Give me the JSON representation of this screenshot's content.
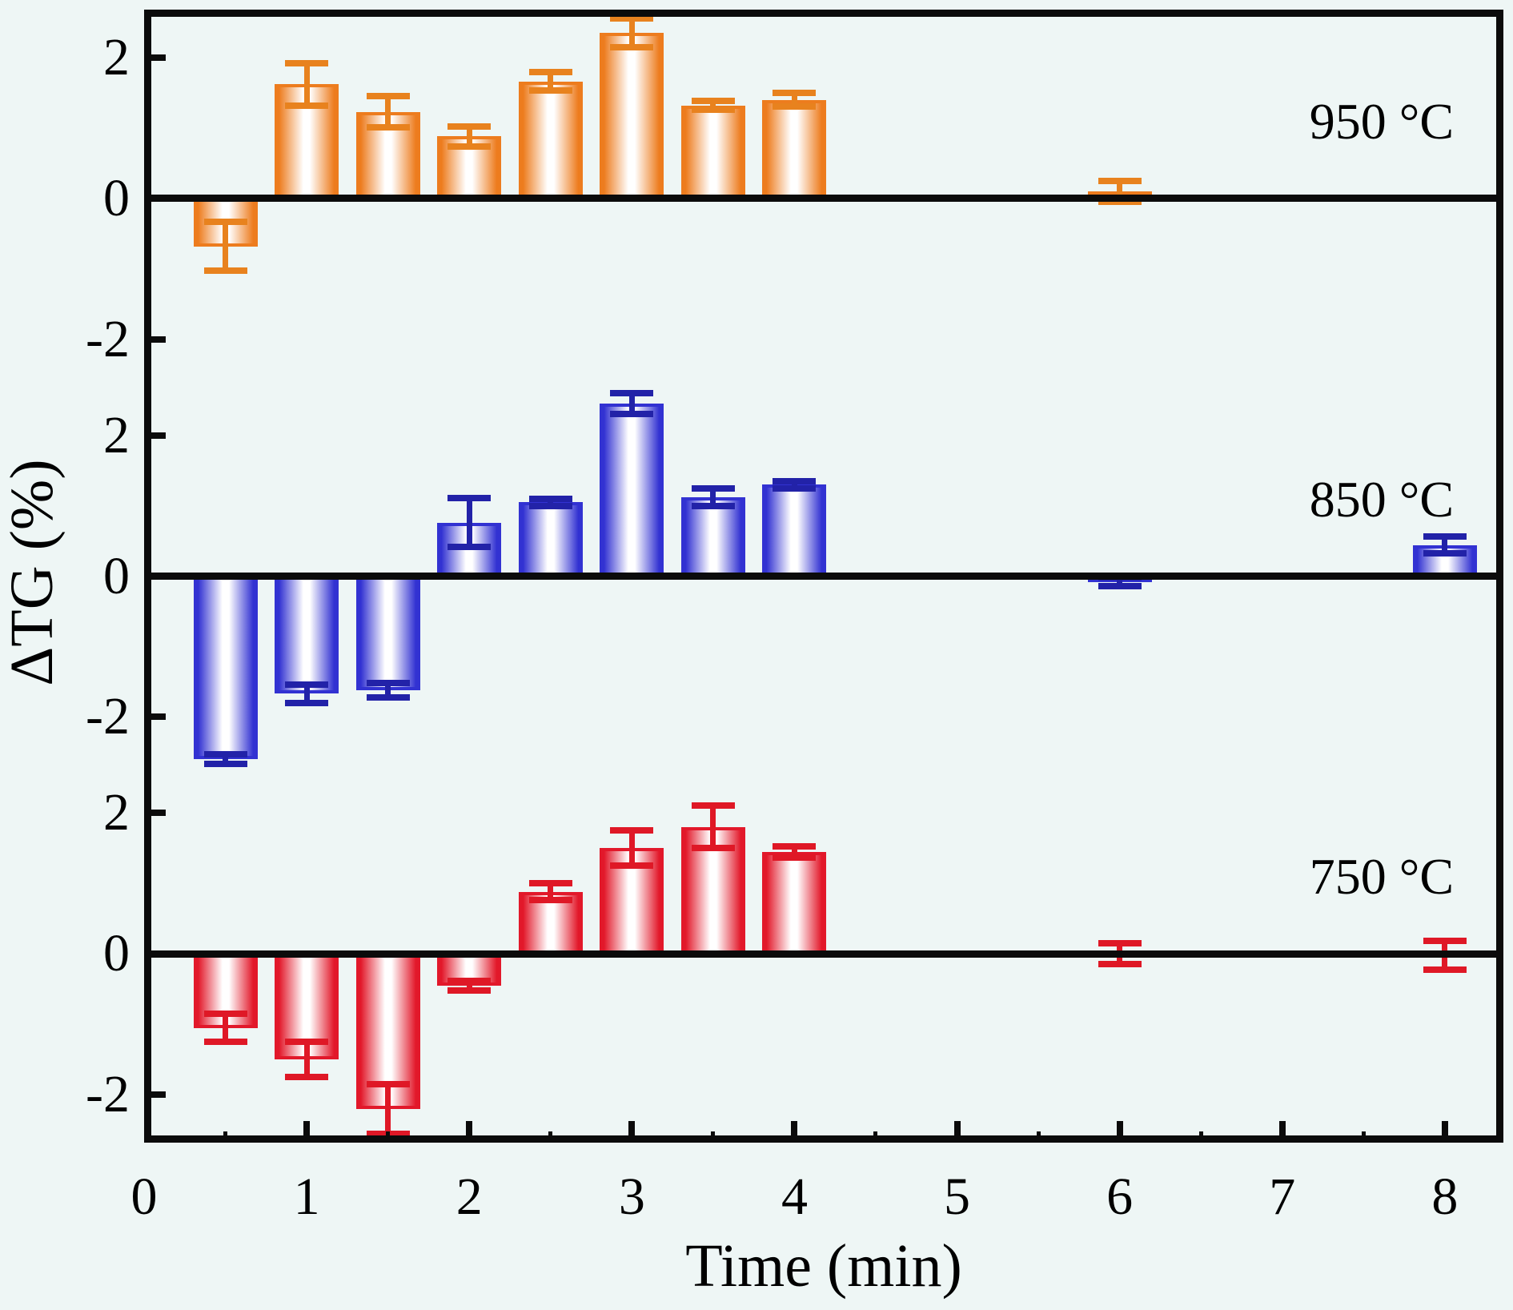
{
  "chart_data": {
    "type": "bar",
    "title": "",
    "xlabel": "Time (min)",
    "ylabel": "ΔTG (%)",
    "xlim": [
      0,
      8.36
    ],
    "x_ticks": [
      0,
      1,
      2,
      3,
      4,
      5,
      6,
      7,
      8
    ],
    "x_minor_step": 0.5,
    "grid": false,
    "legend": "none (panel labels inside plot, top right of each panel)",
    "layout": "three stacked subplots sharing the x axis, thick zero line in each subplot",
    "panels": [
      {
        "label": "950 °C",
        "bar_color": "#ED7C1E",
        "error_color": "#E8821E",
        "ylim": [
          -2.68,
          2.68
        ],
        "y_ticks": [
          "2",
          "0",
          "-2"
        ],
        "points": [
          {
            "t": 0.5,
            "v": -0.68,
            "e": 0.35
          },
          {
            "t": 1.0,
            "v": 1.62,
            "e": 0.3
          },
          {
            "t": 1.5,
            "v": 1.23,
            "e": 0.22
          },
          {
            "t": 2.0,
            "v": 0.88,
            "e": 0.14
          },
          {
            "t": 2.5,
            "v": 1.66,
            "e": 0.13
          },
          {
            "t": 3.0,
            "v": 2.35,
            "e": 0.2
          },
          {
            "t": 3.5,
            "v": 1.32,
            "e": 0.06
          },
          {
            "t": 4.0,
            "v": 1.4,
            "e": 0.1
          },
          {
            "t": 6.0,
            "v": 0.1,
            "e": 0.15
          }
        ]
      },
      {
        "label": "850 °C",
        "bar_color": "#3232D2",
        "error_color": "#2222A8",
        "ylim": [
          -2.68,
          2.68
        ],
        "y_ticks": [
          "2",
          "0",
          "-2"
        ],
        "points": [
          {
            "t": 0.5,
            "v": -2.6,
            "e": 0.07
          },
          {
            "t": 1.0,
            "v": -1.67,
            "e": 0.13
          },
          {
            "t": 1.5,
            "v": -1.62,
            "e": 0.1
          },
          {
            "t": 2.0,
            "v": 0.76,
            "e": 0.35
          },
          {
            "t": 2.5,
            "v": 1.05,
            "e": 0.05
          },
          {
            "t": 3.0,
            "v": 2.45,
            "e": 0.15
          },
          {
            "t": 3.5,
            "v": 1.12,
            "e": 0.12
          },
          {
            "t": 4.0,
            "v": 1.3,
            "e": 0.05
          },
          {
            "t": 6.0,
            "v": -0.08,
            "e": 0.06
          },
          {
            "t": 8.0,
            "v": 0.44,
            "e": 0.12
          }
        ]
      },
      {
        "label": "750 °C",
        "bar_color": "#E2182A",
        "error_color": "#DF1826",
        "ylim": [
          -2.68,
          2.68
        ],
        "y_ticks": [
          "2",
          "0",
          "-2"
        ],
        "points": [
          {
            "t": 0.5,
            "v": -1.05,
            "e": 0.2
          },
          {
            "t": 1.0,
            "v": -1.5,
            "e": 0.25
          },
          {
            "t": 1.5,
            "v": -2.2,
            "e": 0.35
          },
          {
            "t": 2.0,
            "v": -0.45,
            "e": 0.07
          },
          {
            "t": 2.5,
            "v": 0.88,
            "e": 0.12
          },
          {
            "t": 3.0,
            "v": 1.5,
            "e": 0.25
          },
          {
            "t": 3.5,
            "v": 1.8,
            "e": 0.3
          },
          {
            "t": 4.0,
            "v": 1.45,
            "e": 0.08
          },
          {
            "t": 6.0,
            "v": 0.0,
            "e": 0.15
          },
          {
            "t": 8.0,
            "v": -0.02,
            "e": 0.2
          }
        ]
      }
    ]
  }
}
